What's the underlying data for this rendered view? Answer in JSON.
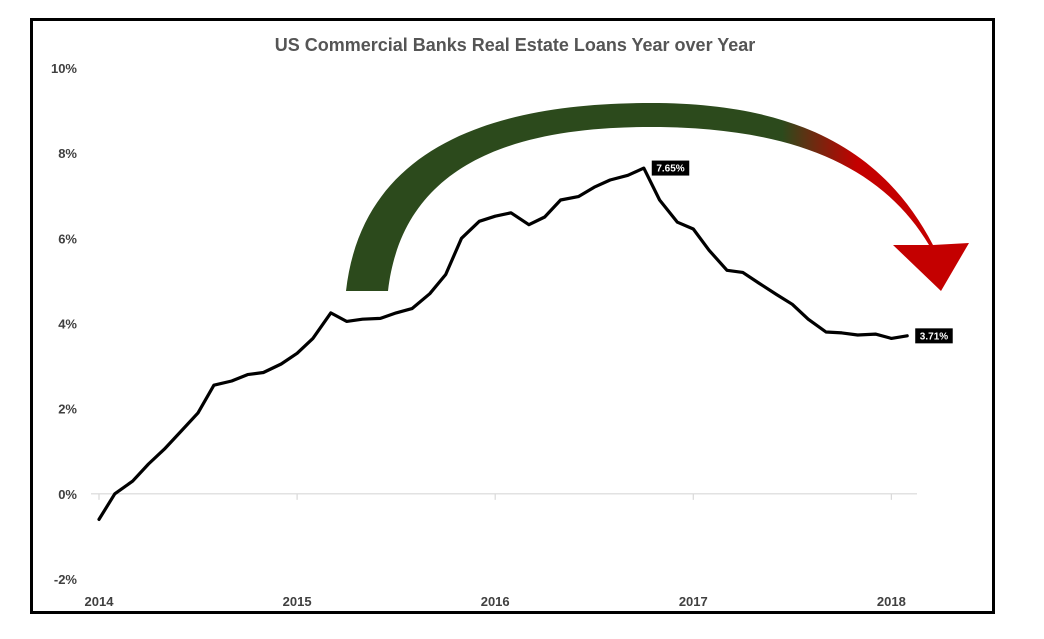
{
  "chart_data": {
    "type": "line",
    "title": "US Commercial Banks Real Estate Loans Year over Year",
    "xlabel": "",
    "ylabel": "",
    "xlim": [
      2014,
      2018.2
    ],
    "ylim": [
      -2,
      10
    ],
    "x_ticks": [
      {
        "value": 2014,
        "label": "2014"
      },
      {
        "value": 2015,
        "label": "2015"
      },
      {
        "value": 2016,
        "label": "2016"
      },
      {
        "value": 2017,
        "label": "2017"
      },
      {
        "value": 2018,
        "label": "2018"
      }
    ],
    "y_ticks": [
      {
        "value": -2,
        "label": "-2%"
      },
      {
        "value": 0,
        "label": "0%"
      },
      {
        "value": 2,
        "label": "2%"
      },
      {
        "value": 4,
        "label": "4%"
      },
      {
        "value": 6,
        "label": "6%"
      },
      {
        "value": 8,
        "label": "8%"
      },
      {
        "value": 10,
        "label": "10%"
      }
    ],
    "grid": false,
    "legend": "none",
    "series": [
      {
        "color": "#000000",
        "points": [
          [
            2014.0,
            -0.6
          ],
          [
            2014.08,
            0.0
          ],
          [
            2014.17,
            0.3
          ],
          [
            2014.25,
            0.7
          ],
          [
            2014.33,
            1.05
          ],
          [
            2014.42,
            1.5
          ],
          [
            2014.5,
            1.9
          ],
          [
            2014.58,
            2.55
          ],
          [
            2014.67,
            2.65
          ],
          [
            2014.75,
            2.8
          ],
          [
            2014.83,
            2.85
          ],
          [
            2014.92,
            3.05
          ],
          [
            2015.0,
            3.3
          ],
          [
            2015.08,
            3.65
          ],
          [
            2015.17,
            4.25
          ],
          [
            2015.25,
            4.05
          ],
          [
            2015.33,
            4.1
          ],
          [
            2015.42,
            4.12
          ],
          [
            2015.5,
            4.25
          ],
          [
            2015.58,
            4.35
          ],
          [
            2015.67,
            4.7
          ],
          [
            2015.75,
            5.15
          ],
          [
            2015.83,
            6.0
          ],
          [
            2015.92,
            6.4
          ],
          [
            2016.0,
            6.52
          ],
          [
            2016.08,
            6.6
          ],
          [
            2016.17,
            6.32
          ],
          [
            2016.25,
            6.5
          ],
          [
            2016.33,
            6.9
          ],
          [
            2016.42,
            6.98
          ],
          [
            2016.5,
            7.2
          ],
          [
            2016.58,
            7.37
          ],
          [
            2016.67,
            7.48
          ],
          [
            2016.75,
            7.65
          ],
          [
            2016.83,
            6.9
          ],
          [
            2016.92,
            6.38
          ],
          [
            2017.0,
            6.22
          ],
          [
            2017.08,
            5.72
          ],
          [
            2017.17,
            5.25
          ],
          [
            2017.25,
            5.2
          ],
          [
            2017.33,
            4.95
          ],
          [
            2017.42,
            4.68
          ],
          [
            2017.5,
            4.45
          ],
          [
            2017.58,
            4.1
          ],
          [
            2017.67,
            3.8
          ],
          [
            2017.75,
            3.78
          ],
          [
            2017.83,
            3.73
          ],
          [
            2017.92,
            3.75
          ],
          [
            2018.0,
            3.65
          ],
          [
            2018.08,
            3.71
          ]
        ]
      }
    ],
    "annotations": [
      {
        "x": 2016.75,
        "y": 7.65,
        "label": "7.65%"
      },
      {
        "x": 2018.08,
        "y": 3.71,
        "label": "3.71%"
      }
    ],
    "arrow": {
      "gradient_start": "#2c4a1c",
      "gradient_end": "#c40000"
    }
  }
}
